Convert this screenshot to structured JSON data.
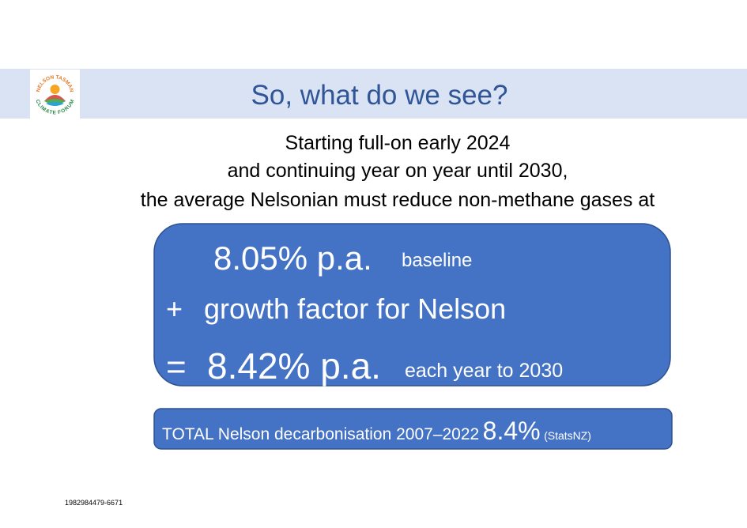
{
  "header": {
    "title": "So, what do we see?"
  },
  "logo": {
    "text_top": "NELSON TASMAN",
    "text_bottom": "CLIMATE FORUM"
  },
  "intro": {
    "lines": [
      "Starting full-on early 2024",
      "and continuing year on year until 2030,",
      "the average Nelsonian must reduce non-methane gases at"
    ]
  },
  "box": {
    "baseline_value": "8.05% p.a.",
    "baseline_label": "baseline",
    "plus": "+",
    "growth_label": "growth factor for Nelson",
    "equals": "=",
    "result_value": "8.42% p.a.",
    "result_label": "each year to 2030"
  },
  "total": {
    "label": "TOTAL Nelson decarbonisation 2007–2022",
    "value": "8.4%",
    "source": "(StatsNZ)"
  },
  "footer": {
    "id": "1982984479-6671"
  }
}
